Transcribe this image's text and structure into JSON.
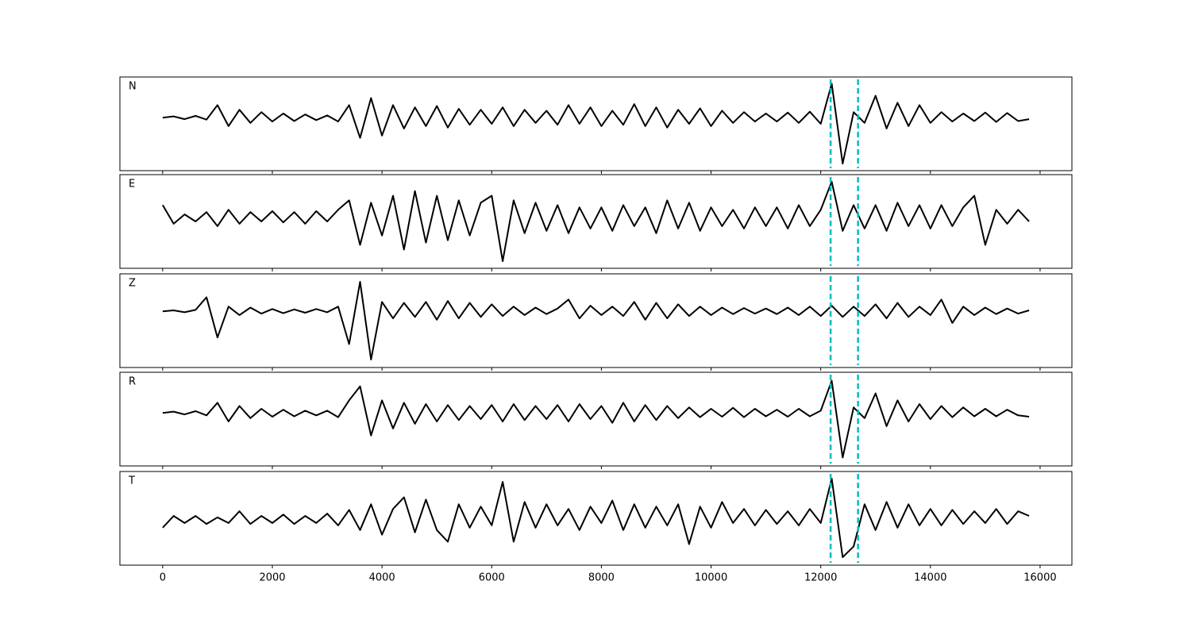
{
  "chart_data": {
    "type": "line",
    "x": [
      0,
      200,
      400,
      600,
      800,
      1000,
      1200,
      1400,
      1600,
      1800,
      2000,
      2200,
      2400,
      2600,
      2800,
      3000,
      3200,
      3400,
      3600,
      3800,
      4000,
      4200,
      4400,
      4600,
      4800,
      5000,
      5200,
      5400,
      5600,
      5800,
      6000,
      6200,
      6400,
      6600,
      6800,
      7000,
      7200,
      7400,
      7600,
      7800,
      8000,
      8200,
      8400,
      8600,
      8800,
      9000,
      9200,
      9400,
      9600,
      9800,
      10000,
      10200,
      10400,
      10600,
      10800,
      11000,
      11200,
      11400,
      11600,
      11800,
      12000,
      12200,
      12400,
      12600,
      12800,
      13000,
      13200,
      13400,
      13600,
      13800,
      14000,
      14200,
      14400,
      14600,
      14800,
      15000,
      15200,
      15400,
      15600,
      15800
    ],
    "series": [
      {
        "name": "N",
        "color": "#000000",
        "values": [
          0.13,
          0.16,
          0.1,
          0.17,
          0.09,
          0.4,
          -0.05,
          0.3,
          0.02,
          0.25,
          0.05,
          0.22,
          0.06,
          0.2,
          0.08,
          0.18,
          0.05,
          0.4,
          -0.3,
          0.55,
          -0.25,
          0.4,
          -0.1,
          0.35,
          -0.05,
          0.38,
          -0.08,
          0.32,
          -0.02,
          0.3,
          0.0,
          0.35,
          -0.05,
          0.3,
          0.02,
          0.28,
          -0.02,
          0.4,
          0.0,
          0.35,
          -0.05,
          0.28,
          -0.02,
          0.42,
          -0.05,
          0.35,
          -0.08,
          0.3,
          0.0,
          0.33,
          -0.05,
          0.28,
          0.02,
          0.25,
          0.05,
          0.22,
          0.05,
          0.24,
          0.02,
          0.26,
          0.0,
          0.86,
          -0.85,
          0.25,
          0.02,
          0.6,
          -0.1,
          0.45,
          -0.05,
          0.4,
          0.02,
          0.25,
          0.05,
          0.22,
          0.06,
          0.24,
          0.04,
          0.23,
          0.06,
          0.1
        ]
      },
      {
        "name": "E",
        "color": "#000000",
        "values": [
          0.35,
          -0.05,
          0.15,
          0.0,
          0.2,
          -0.1,
          0.25,
          -0.05,
          0.2,
          0.0,
          0.22,
          -0.02,
          0.2,
          -0.05,
          0.22,
          0.0,
          0.25,
          0.45,
          -0.5,
          0.4,
          -0.3,
          0.55,
          -0.6,
          0.65,
          -0.45,
          0.55,
          -0.4,
          0.45,
          -0.3,
          0.4,
          0.55,
          -0.85,
          0.45,
          -0.25,
          0.4,
          -0.2,
          0.35,
          -0.25,
          0.3,
          -0.15,
          0.3,
          -0.2,
          0.35,
          -0.1,
          0.3,
          -0.25,
          0.45,
          -0.15,
          0.4,
          -0.2,
          0.3,
          -0.1,
          0.25,
          -0.15,
          0.3,
          -0.1,
          0.3,
          -0.15,
          0.35,
          -0.1,
          0.25,
          0.85,
          -0.2,
          0.35,
          -0.15,
          0.35,
          -0.2,
          0.4,
          -0.1,
          0.35,
          -0.15,
          0.35,
          -0.1,
          0.3,
          0.55,
          -0.5,
          0.25,
          -0.05,
          0.25,
          0.0
        ]
      },
      {
        "name": "Z",
        "color": "#000000",
        "values": [
          0.2,
          0.22,
          0.18,
          0.23,
          0.5,
          -0.36,
          0.3,
          0.12,
          0.28,
          0.15,
          0.25,
          0.16,
          0.24,
          0.17,
          0.25,
          0.18,
          0.3,
          -0.5,
          0.83,
          -0.83,
          0.4,
          0.05,
          0.38,
          0.08,
          0.4,
          0.02,
          0.42,
          0.05,
          0.38,
          0.08,
          0.35,
          0.1,
          0.3,
          0.12,
          0.28,
          0.14,
          0.26,
          0.45,
          0.05,
          0.32,
          0.12,
          0.3,
          0.1,
          0.4,
          0.02,
          0.38,
          0.05,
          0.35,
          0.1,
          0.3,
          0.12,
          0.28,
          0.14,
          0.27,
          0.15,
          0.26,
          0.14,
          0.28,
          0.12,
          0.3,
          0.1,
          0.32,
          0.08,
          0.3,
          0.1,
          0.35,
          0.05,
          0.38,
          0.08,
          0.3,
          0.12,
          0.45,
          -0.05,
          0.3,
          0.12,
          0.28,
          0.14,
          0.26,
          0.15,
          0.22
        ]
      },
      {
        "name": "R",
        "color": "#000000",
        "values": [
          0.13,
          0.16,
          0.1,
          0.17,
          0.08,
          0.35,
          -0.05,
          0.28,
          0.02,
          0.22,
          0.05,
          0.2,
          0.06,
          0.18,
          0.08,
          0.18,
          0.04,
          0.4,
          0.7,
          -0.35,
          0.4,
          -0.2,
          0.35,
          -0.1,
          0.32,
          -0.05,
          0.3,
          -0.02,
          0.28,
          0.0,
          0.3,
          -0.05,
          0.32,
          -0.02,
          0.28,
          0.0,
          0.3,
          -0.05,
          0.32,
          0.0,
          0.28,
          -0.08,
          0.35,
          -0.05,
          0.3,
          -0.02,
          0.28,
          0.02,
          0.25,
          0.04,
          0.22,
          0.05,
          0.24,
          0.04,
          0.22,
          0.06,
          0.2,
          0.05,
          0.22,
          0.06,
          0.18,
          0.82,
          -0.82,
          0.25,
          0.02,
          0.55,
          -0.15,
          0.4,
          -0.05,
          0.32,
          0.0,
          0.28,
          0.04,
          0.25,
          0.06,
          0.22,
          0.06,
          0.2,
          0.08,
          0.05
        ]
      },
      {
        "name": "T",
        "color": "#000000",
        "values": [
          -0.2,
          0.05,
          -0.1,
          0.05,
          -0.12,
          0.02,
          -0.1,
          0.15,
          -0.12,
          0.05,
          -0.1,
          0.08,
          -0.12,
          0.05,
          -0.1,
          0.1,
          -0.15,
          0.18,
          -0.25,
          0.3,
          -0.35,
          0.2,
          0.45,
          -0.3,
          0.4,
          -0.25,
          -0.5,
          0.3,
          -0.2,
          0.25,
          -0.15,
          0.78,
          -0.5,
          0.35,
          -0.2,
          0.3,
          -0.15,
          0.2,
          -0.25,
          0.25,
          -0.1,
          0.38,
          -0.25,
          0.3,
          -0.2,
          0.25,
          -0.15,
          0.3,
          -0.55,
          0.25,
          -0.2,
          0.35,
          -0.1,
          0.2,
          -0.15,
          0.18,
          -0.12,
          0.15,
          -0.15,
          0.2,
          -0.1,
          0.85,
          -0.83,
          -0.6,
          0.3,
          -0.25,
          0.35,
          -0.2,
          0.3,
          -0.15,
          0.2,
          -0.15,
          0.18,
          -0.12,
          0.15,
          -0.1,
          0.2,
          -0.12,
          0.15,
          0.05
        ]
      }
    ],
    "vlines": [
      12180,
      12680
    ],
    "vline_color": "#00bfbf",
    "xlim": [
      -780,
      16580
    ],
    "xticks": [
      0,
      2000,
      4000,
      6000,
      8000,
      10000,
      12000,
      14000,
      16000
    ],
    "ylim": [
      -1,
      1
    ]
  }
}
